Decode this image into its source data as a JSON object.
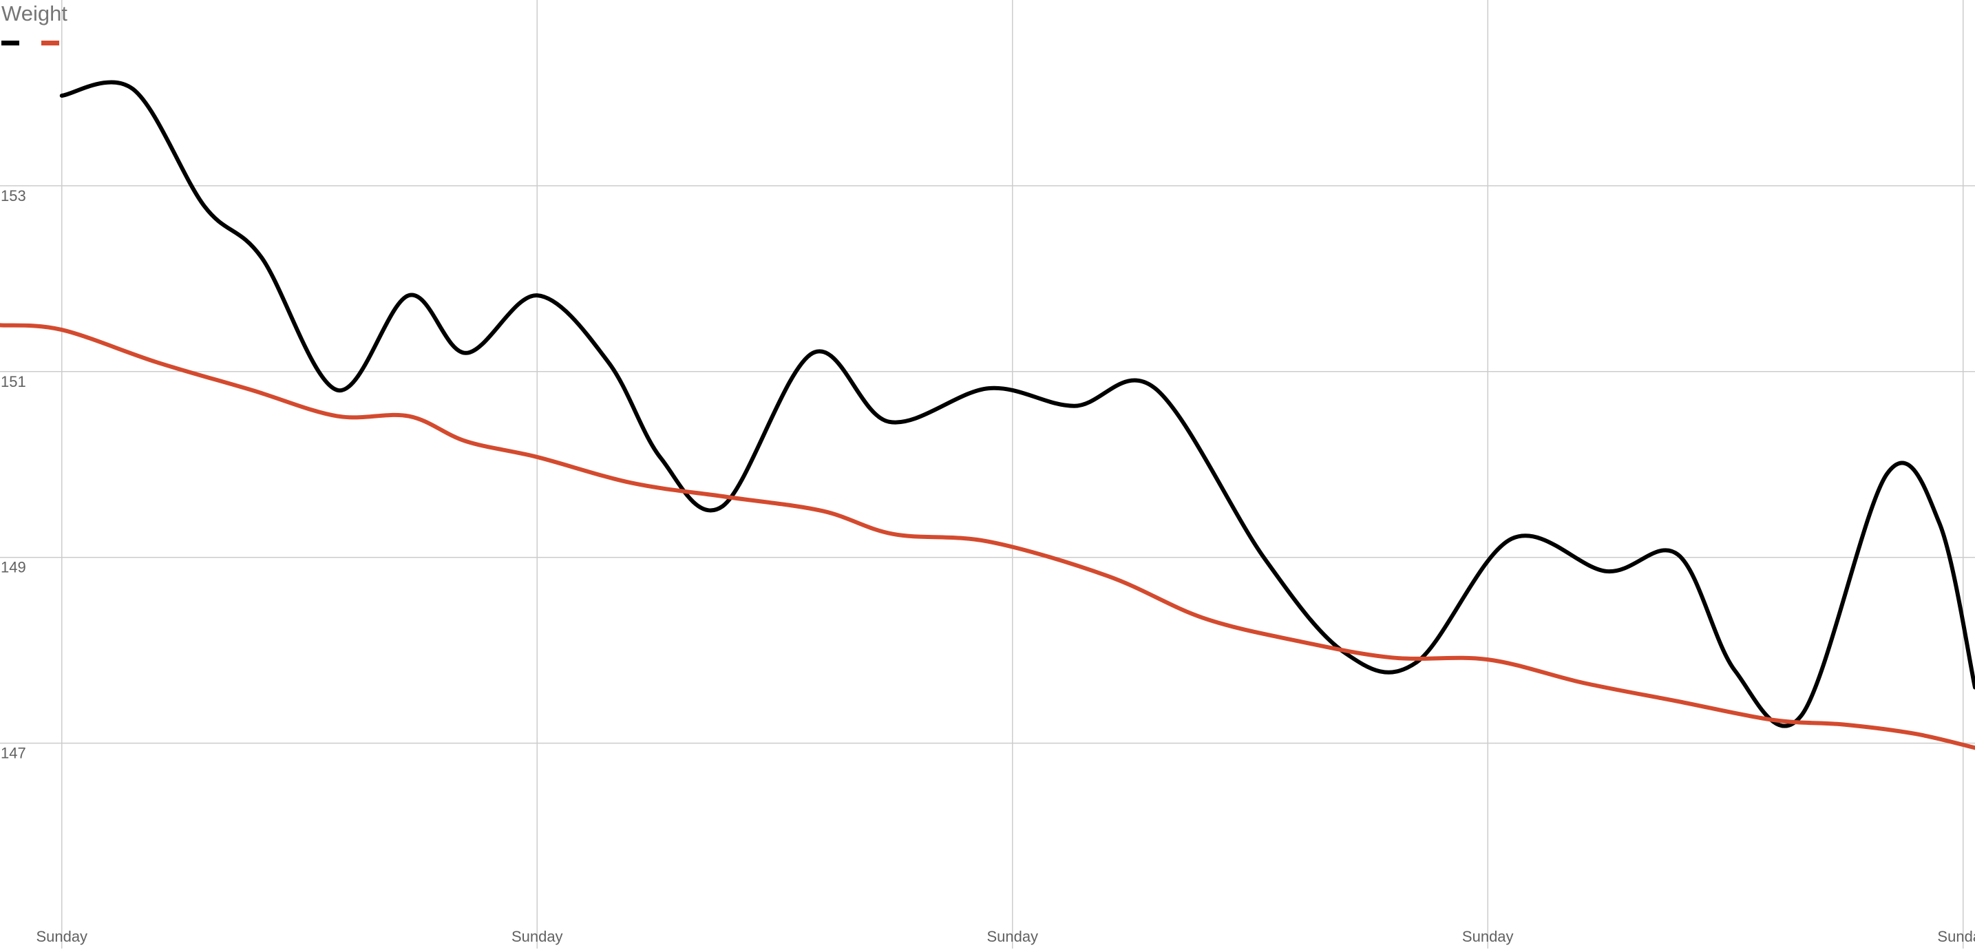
{
  "chart_data": {
    "type": "line",
    "title": "Weight",
    "xlabel": "",
    "ylabel": "",
    "ylim": [
      145.1,
      155.0
    ],
    "xlim": [
      -1.3,
      40.25
    ],
    "grid": true,
    "legend_position": "top-left",
    "y_ticks": [
      147,
      149,
      151,
      153
    ],
    "x_ticks": [
      {
        "x": 0,
        "label": "Sunday"
      },
      {
        "x": 10,
        "label": "Sunday"
      },
      {
        "x": 20,
        "label": "Sunday"
      },
      {
        "x": 30,
        "label": "Sunday"
      },
      {
        "x": 40,
        "label": "Sunday"
      }
    ],
    "series": [
      {
        "name": "",
        "color": "#000000",
        "x": [
          0,
          1.5,
          3,
          4.2,
          5.8,
          7.3,
          8.5,
          10,
          11.5,
          12.6,
          13.9,
          15.8,
          17.4,
          19.5,
          21.3,
          23,
          25.3,
          27,
          28.5,
          30.5,
          32.5,
          34,
          35.2,
          36.6,
          38.4,
          39.5,
          40.25
        ],
        "values": [
          153.97,
          154.04,
          152.78,
          152.23,
          150.8,
          151.82,
          151.2,
          151.82,
          151.1,
          150.07,
          149.55,
          151.2,
          150.46,
          150.82,
          150.63,
          150.82,
          148.99,
          147.97,
          147.87,
          149.2,
          148.85,
          149.03,
          147.78,
          147.3,
          149.9,
          149.37,
          147.6
        ]
      },
      {
        "name": "",
        "color": "#D44A2E",
        "x": [
          -1.3,
          0,
          2,
          4,
          5.8,
          7.3,
          8.5,
          10,
          12,
          14,
          16,
          17.5,
          19.5,
          22,
          24,
          26,
          28,
          30,
          32,
          34,
          36,
          37.5,
          39,
          40.25
        ],
        "values": [
          151.5,
          151.45,
          151.1,
          150.8,
          150.52,
          150.52,
          150.25,
          150.08,
          149.8,
          149.65,
          149.5,
          149.25,
          149.17,
          148.8,
          148.35,
          148.1,
          147.92,
          147.9,
          147.65,
          147.45,
          147.25,
          147.2,
          147.1,
          146.95
        ]
      }
    ]
  }
}
